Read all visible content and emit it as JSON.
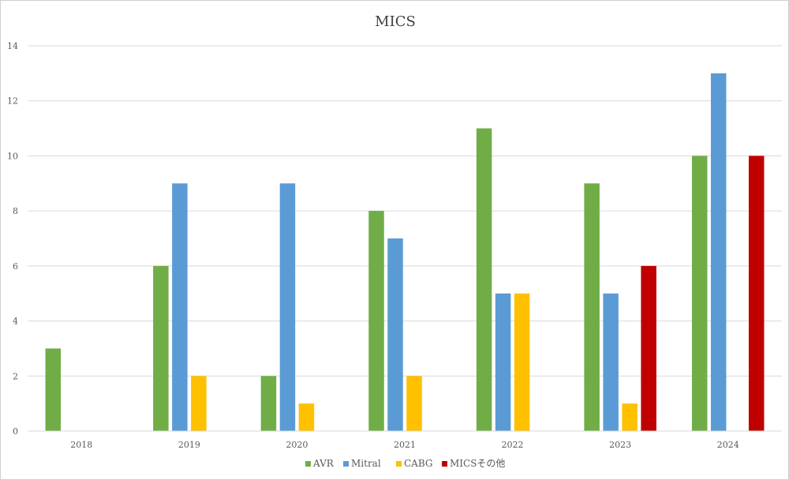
{
  "chart_data": {
    "type": "bar",
    "title": "MICS",
    "xlabel": "",
    "ylabel": "",
    "categories": [
      "2018",
      "2019",
      "2020",
      "2021",
      "2022",
      "2023",
      "2024"
    ],
    "ylim": [
      0,
      14
    ],
    "yticks": [
      0,
      2,
      4,
      6,
      8,
      10,
      12,
      14
    ],
    "grid": true,
    "legend_position": "bottom",
    "series": [
      {
        "name": "AVR",
        "color": "#70AD47",
        "values": [
          3,
          6,
          2,
          8,
          11,
          9,
          10
        ]
      },
      {
        "name": "Mitral",
        "color": "#5B9BD5",
        "values": [
          0,
          9,
          9,
          7,
          5,
          5,
          13
        ]
      },
      {
        "name": "CABG",
        "color": "#FFC000",
        "values": [
          0,
          2,
          1,
          2,
          5,
          1,
          0
        ]
      },
      {
        "name": "MICSその他",
        "color": "#C00000",
        "values": [
          0,
          0,
          0,
          0,
          0,
          6,
          10
        ]
      }
    ]
  }
}
